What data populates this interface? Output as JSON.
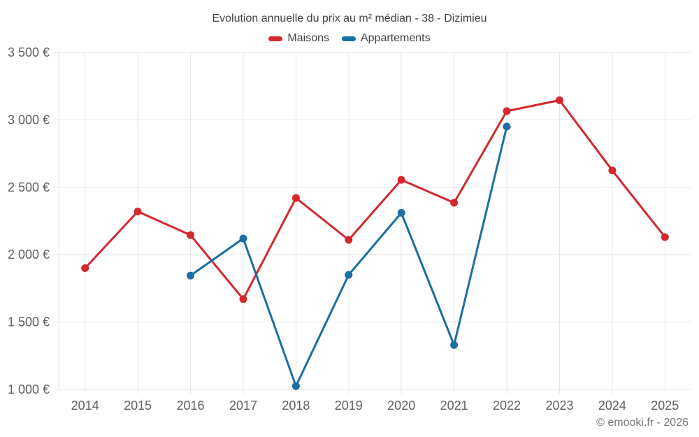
{
  "chart_data": {
    "type": "line",
    "title": "Evolution annuelle du prix au m² médian - 38 - Dizimieu",
    "categories": [
      "2014",
      "2015",
      "2016",
      "2017",
      "2018",
      "2019",
      "2020",
      "2021",
      "2022",
      "2023",
      "2024",
      "2025"
    ],
    "series": [
      {
        "name": "Maisons",
        "color": "#d4282d",
        "values": [
          1900,
          2320,
          2145,
          1670,
          2420,
          2110,
          2555,
          2385,
          3065,
          3145,
          2625,
          2130
        ]
      },
      {
        "name": "Appartements",
        "color": "#1a6fa4",
        "values": [
          null,
          null,
          1845,
          2120,
          1025,
          1850,
          2310,
          1330,
          2950,
          null,
          null,
          null
        ]
      }
    ],
    "xlabel": "",
    "ylabel": "",
    "ylim": [
      1000,
      3500
    ],
    "ytick_step": 500,
    "ytick_labels": [
      "1 000 €",
      "1 500 €",
      "2 000 €",
      "2 500 €",
      "3 000 €",
      "3 500 €"
    ],
    "grid": true,
    "legend_position": "top",
    "footer": "© emooki.fr - 2026",
    "colors": {
      "grid": "#e6e6e6",
      "axis_label": "#616161",
      "title": "#424242",
      "footer": "#757575",
      "background": "#ffffff"
    }
  }
}
